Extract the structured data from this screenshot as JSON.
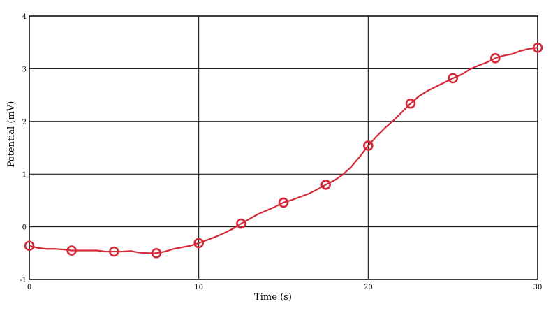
{
  "chart_data": {
    "type": "line",
    "title": "",
    "xlabel": "Time (s)",
    "ylabel": "Potential (mV)",
    "xlim": [
      0,
      30
    ],
    "ylim": [
      -1,
      4
    ],
    "x_ticks": [
      0,
      10,
      20,
      30
    ],
    "y_ticks": [
      -1,
      0,
      1,
      2,
      3,
      4
    ],
    "grid": true,
    "colors": {
      "line": "#d42a38",
      "grid": "#000000"
    },
    "series": [
      {
        "curve": {
          "x": [
            0,
            0.5,
            1,
            1.5,
            2,
            2.5,
            3,
            3.5,
            4,
            4.5,
            5,
            5.5,
            6,
            6.5,
            7,
            7.5,
            8,
            8.5,
            9,
            9.5,
            10,
            10.5,
            11,
            11.5,
            12,
            12.5,
            13,
            13.5,
            14,
            14.5,
            15,
            15.5,
            16,
            16.5,
            17,
            17.5,
            18,
            18.5,
            19,
            19.5,
            20,
            20.5,
            21,
            21.5,
            22,
            22.5,
            23,
            23.5,
            24,
            24.5,
            25,
            25.5,
            26,
            26.5,
            27,
            27.5,
            28,
            28.5,
            29,
            29.5,
            30
          ],
          "y": [
            -0.36,
            -0.4,
            -0.42,
            -0.42,
            -0.43,
            -0.45,
            -0.45,
            -0.45,
            -0.45,
            -0.47,
            -0.47,
            -0.47,
            -0.46,
            -0.49,
            -0.5,
            -0.5,
            -0.47,
            -0.42,
            -0.39,
            -0.36,
            -0.31,
            -0.25,
            -0.19,
            -0.12,
            -0.04,
            0.06,
            0.15,
            0.24,
            0.31,
            0.38,
            0.46,
            0.51,
            0.57,
            0.63,
            0.71,
            0.8,
            0.88,
            0.99,
            1.14,
            1.33,
            1.54,
            1.72,
            1.88,
            2.02,
            2.18,
            2.34,
            2.48,
            2.58,
            2.66,
            2.74,
            2.82,
            2.89,
            2.99,
            3.06,
            3.12,
            3.2,
            3.25,
            3.28,
            3.34,
            3.38,
            3.4
          ]
        },
        "markers": {
          "x": [
            0,
            2.5,
            5,
            7.5,
            10,
            12.5,
            15,
            17.5,
            20,
            22.5,
            25,
            27.5,
            30
          ],
          "y": [
            -0.36,
            -0.45,
            -0.47,
            -0.5,
            -0.31,
            0.06,
            0.46,
            0.8,
            1.54,
            2.34,
            2.82,
            3.2,
            3.4
          ]
        }
      }
    ]
  }
}
